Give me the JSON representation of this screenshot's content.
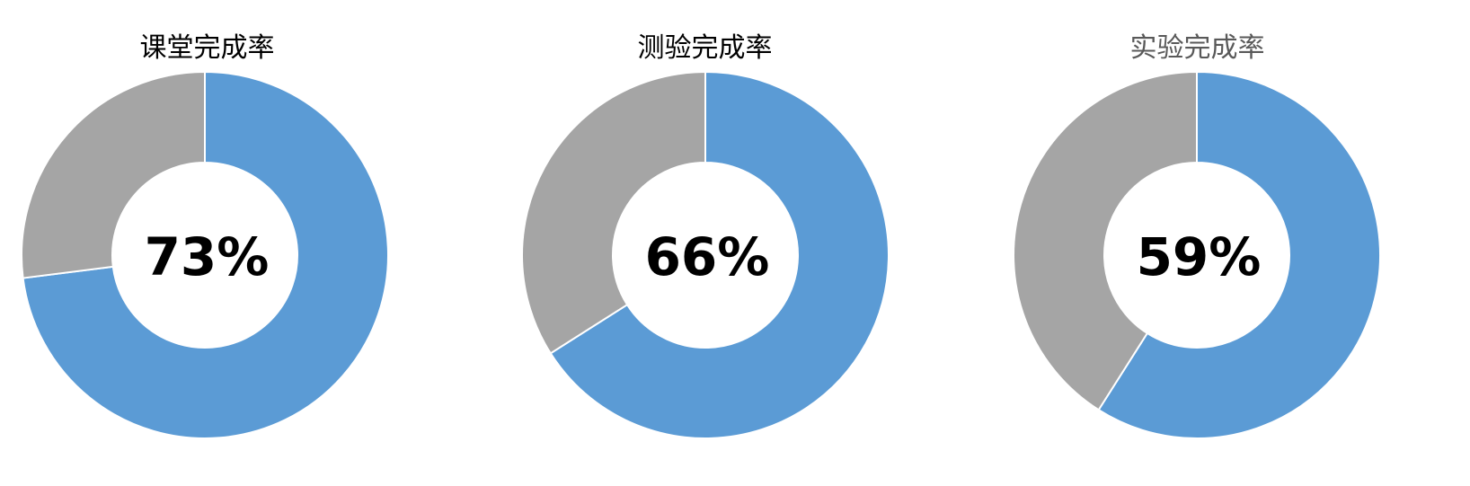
{
  "colors": {
    "completed": "#5B9BD5",
    "remaining": "#A5A5A5",
    "separator": "#FFFFFF"
  },
  "chart_data": [
    {
      "type": "pie",
      "title": "课堂完成率",
      "center_label": "73%",
      "values": [
        73,
        27
      ],
      "legend": "none"
    },
    {
      "type": "pie",
      "title": "测验完成率",
      "center_label": "66%",
      "values": [
        66,
        34
      ],
      "legend": "none"
    },
    {
      "type": "pie",
      "title": "实验完成率",
      "center_label": "59%",
      "values": [
        59,
        41
      ],
      "legend": "none"
    }
  ]
}
